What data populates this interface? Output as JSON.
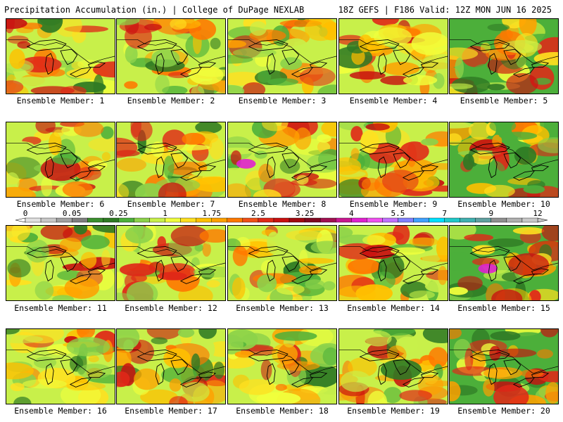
{
  "header": {
    "left": "Precipitation Accumulation (in.) | College of DuPage NEXLAB",
    "right": "18Z GEFS | F186 Valid: 12Z MON JUN 16 2025"
  },
  "members": [
    {
      "label": "Ensemble Member: 1"
    },
    {
      "label": "Ensemble Member: 2"
    },
    {
      "label": "Ensemble Member: 3"
    },
    {
      "label": "Ensemble Member: 4"
    },
    {
      "label": "Ensemble Member: 5"
    },
    {
      "label": "Ensemble Member: 6"
    },
    {
      "label": "Ensemble Member: 7"
    },
    {
      "label": "Ensemble Member: 8"
    },
    {
      "label": "Ensemble Member: 9"
    },
    {
      "label": "Ensemble Member: 10"
    },
    {
      "label": "Ensemble Member: 11"
    },
    {
      "label": "Ensemble Member: 12"
    },
    {
      "label": "Ensemble Member: 13"
    },
    {
      "label": "Ensemble Member: 14"
    },
    {
      "label": "Ensemble Member: 15"
    },
    {
      "label": "Ensemble Member: 16"
    },
    {
      "label": "Ensemble Member: 17"
    },
    {
      "label": "Ensemble Member: 18"
    },
    {
      "label": "Ensemble Member: 19"
    },
    {
      "label": "Ensemble Member: 20"
    }
  ],
  "colorbar": {
    "ticks": [
      "0",
      "0.05",
      "0.25",
      "1",
      "1.75",
      "2.5",
      "3.25",
      "4",
      "5.5",
      "7",
      "9",
      "12"
    ],
    "colors": [
      "#e0e0e0",
      "#c8c8c8",
      "#a0a0a0",
      "#7f7f7f",
      "#3a8f2e",
      "#2f7a24",
      "#4caf3a",
      "#8cd24a",
      "#c8f04a",
      "#f0ff3c",
      "#ffe020",
      "#ffc000",
      "#ffa000",
      "#ff7800",
      "#f05018",
      "#e02818",
      "#c81010",
      "#a00810",
      "#800820",
      "#a01050",
      "#c81890",
      "#e020d0",
      "#f050f0",
      "#c070ff",
      "#8080ff",
      "#40a0ff",
      "#00e0ff",
      "#20c8c8",
      "#40b0b0",
      "#60a0a0",
      "#909090",
      "#b0b0b0",
      "#c8c8c8"
    ]
  },
  "legend_colors": {
    "green": "#2f7a24",
    "yellow": "#f0ff3c",
    "orange": "#ffa000",
    "red": "#e02818",
    "magenta": "#e020d0"
  }
}
